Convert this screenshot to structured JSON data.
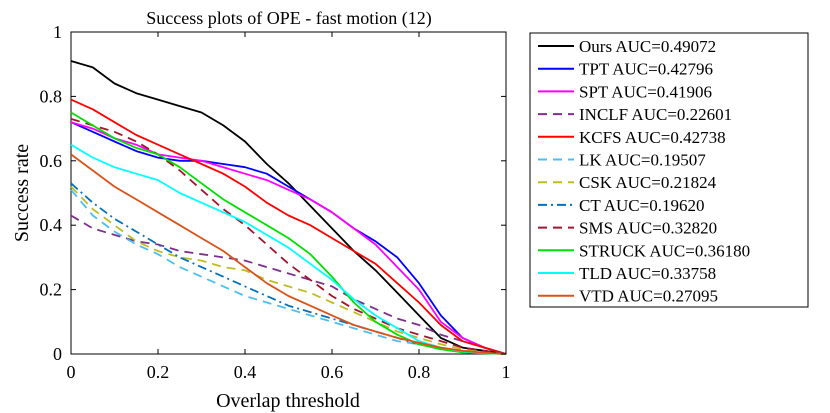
{
  "chart_data": {
    "type": "line",
    "title": "Success plots of OPE - fast motion (12)",
    "xlabel": "Overlap threshold",
    "ylabel": "Success rate",
    "xlim": [
      0,
      1
    ],
    "ylim": [
      0,
      1
    ],
    "xticks": [
      0,
      0.2,
      0.4,
      0.6,
      0.8,
      1
    ],
    "xtick_labels": [
      "0",
      "0.2",
      "0.4",
      "0.6",
      "0.8",
      "1"
    ],
    "yticks": [
      0,
      0.2,
      0.4,
      0.6,
      0.8,
      1
    ],
    "ytick_labels": [
      "0",
      "0.2",
      "0.4",
      "0.6",
      "0.8",
      "1"
    ],
    "grid": false,
    "legend_position": "outside-right",
    "x": [
      0,
      0.05,
      0.1,
      0.15,
      0.2,
      0.25,
      0.3,
      0.35,
      0.4,
      0.45,
      0.5,
      0.55,
      0.6,
      0.65,
      0.7,
      0.75,
      0.8,
      0.85,
      0.9,
      0.95,
      1
    ],
    "series": [
      {
        "name": "Ours",
        "legend": "Ours AUC=0.49072",
        "color": "#000000",
        "dash": "solid",
        "values": [
          0.91,
          0.89,
          0.84,
          0.81,
          0.79,
          0.77,
          0.75,
          0.71,
          0.66,
          0.59,
          0.53,
          0.46,
          0.39,
          0.32,
          0.26,
          0.19,
          0.12,
          0.05,
          0.02,
          0.01,
          0
        ]
      },
      {
        "name": "TPT",
        "legend": "TPT AUC=0.42796",
        "color": "#0000ff",
        "dash": "solid",
        "values": [
          0.72,
          0.69,
          0.66,
          0.63,
          0.61,
          0.6,
          0.6,
          0.59,
          0.58,
          0.56,
          0.52,
          0.48,
          0.44,
          0.39,
          0.35,
          0.3,
          0.22,
          0.12,
          0.05,
          0.02,
          0
        ]
      },
      {
        "name": "SPT",
        "legend": "SPT AUC=0.41906",
        "color": "#ff00ff",
        "dash": "solid",
        "values": [
          0.72,
          0.7,
          0.67,
          0.65,
          0.62,
          0.61,
          0.6,
          0.58,
          0.56,
          0.54,
          0.51,
          0.48,
          0.44,
          0.39,
          0.34,
          0.27,
          0.2,
          0.1,
          0.05,
          0.02,
          0
        ]
      },
      {
        "name": "INCLF",
        "legend": "INCLF AUC=0.22601",
        "color": "#7e2f8e",
        "dash": "dash",
        "values": [
          0.43,
          0.39,
          0.37,
          0.35,
          0.34,
          0.32,
          0.31,
          0.3,
          0.29,
          0.27,
          0.25,
          0.23,
          0.21,
          0.17,
          0.14,
          0.11,
          0.09,
          0.06,
          0.04,
          0.02,
          0
        ]
      },
      {
        "name": "KCFS",
        "legend": "KCFS AUC=0.42738",
        "color": "#ff0000",
        "dash": "solid",
        "values": [
          0.79,
          0.76,
          0.72,
          0.68,
          0.65,
          0.62,
          0.59,
          0.56,
          0.52,
          0.47,
          0.43,
          0.4,
          0.36,
          0.32,
          0.28,
          0.22,
          0.16,
          0.09,
          0.04,
          0.02,
          0
        ]
      },
      {
        "name": "LK",
        "legend": "LK AUC=0.19507",
        "color": "#4dbeee",
        "dash": "dash",
        "values": [
          0.51,
          0.43,
          0.38,
          0.34,
          0.31,
          0.27,
          0.24,
          0.21,
          0.18,
          0.16,
          0.14,
          0.12,
          0.1,
          0.08,
          0.06,
          0.04,
          0.03,
          0.02,
          0.01,
          0.005,
          0
        ]
      },
      {
        "name": "CSK",
        "legend": "CSK AUC=0.21824",
        "color": "#bdbd22",
        "dash": "dash",
        "values": [
          0.52,
          0.45,
          0.4,
          0.35,
          0.32,
          0.3,
          0.29,
          0.27,
          0.26,
          0.23,
          0.21,
          0.19,
          0.16,
          0.13,
          0.1,
          0.07,
          0.05,
          0.03,
          0.015,
          0.005,
          0
        ]
      },
      {
        "name": "CT",
        "legend": "CT AUC=0.19620",
        "color": "#0072bd",
        "dash": "dashdot",
        "values": [
          0.53,
          0.47,
          0.42,
          0.38,
          0.34,
          0.3,
          0.27,
          0.24,
          0.21,
          0.18,
          0.15,
          0.13,
          0.11,
          0.09,
          0.07,
          0.05,
          0.03,
          0.015,
          0.008,
          0.003,
          0
        ]
      },
      {
        "name": "SMS",
        "legend": "SMS AUC=0.32820",
        "color": "#a2142f",
        "dash": "dash",
        "values": [
          0.73,
          0.71,
          0.69,
          0.66,
          0.62,
          0.57,
          0.51,
          0.45,
          0.4,
          0.34,
          0.28,
          0.23,
          0.18,
          0.14,
          0.11,
          0.08,
          0.06,
          0.04,
          0.02,
          0.01,
          0
        ]
      },
      {
        "name": "STRUCK",
        "legend": "STRUCK AUC=0.36180",
        "color": "#00e000",
        "dash": "solid",
        "values": [
          0.75,
          0.71,
          0.67,
          0.64,
          0.62,
          0.58,
          0.53,
          0.48,
          0.44,
          0.4,
          0.36,
          0.31,
          0.24,
          0.16,
          0.1,
          0.06,
          0.03,
          0.015,
          0.005,
          0.002,
          0
        ]
      },
      {
        "name": "TLD",
        "legend": "TLD AUC=0.33758",
        "color": "#00ffff",
        "dash": "solid",
        "values": [
          0.65,
          0.61,
          0.58,
          0.56,
          0.54,
          0.5,
          0.47,
          0.44,
          0.41,
          0.37,
          0.33,
          0.28,
          0.23,
          0.17,
          0.12,
          0.08,
          0.04,
          0.02,
          0.008,
          0.003,
          0
        ]
      },
      {
        "name": "VTD",
        "legend": "VTD AUC=0.27095",
        "color": "#d95319",
        "dash": "solid",
        "values": [
          0.62,
          0.57,
          0.52,
          0.48,
          0.44,
          0.4,
          0.36,
          0.32,
          0.27,
          0.22,
          0.18,
          0.15,
          0.12,
          0.09,
          0.07,
          0.05,
          0.035,
          0.02,
          0.01,
          0.004,
          0
        ]
      }
    ]
  }
}
